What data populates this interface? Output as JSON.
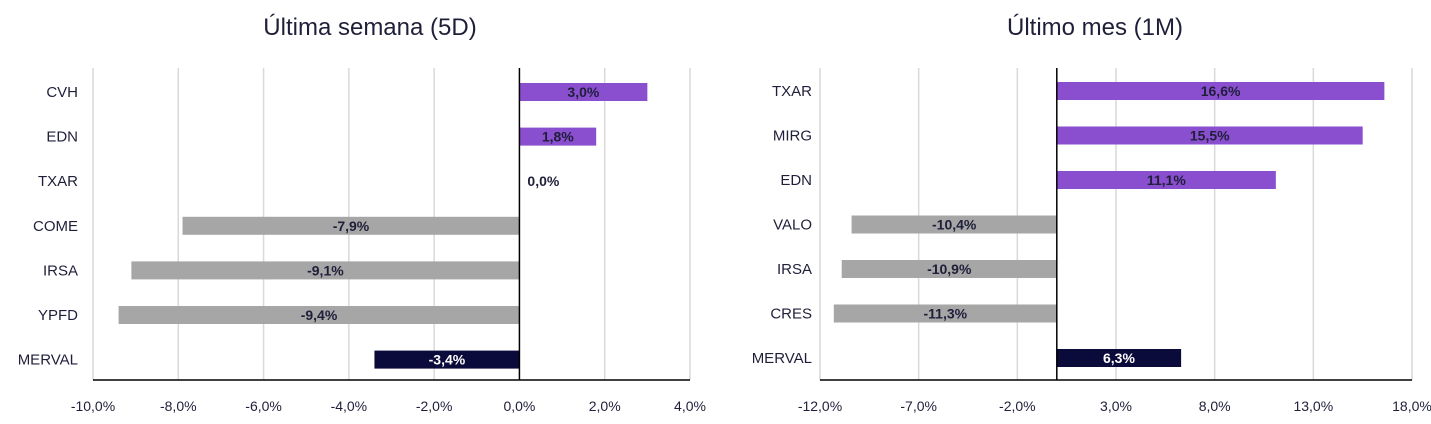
{
  "chart_data": [
    {
      "type": "bar",
      "orientation": "horizontal",
      "title": "Última semana (5D)",
      "categories": [
        "CVH",
        "EDN",
        "TXAR",
        "COME",
        "IRSA",
        "YPFD",
        "MERVAL"
      ],
      "values": [
        3.0,
        1.8,
        0.0,
        -7.9,
        -9.1,
        -9.4,
        -3.4
      ],
      "value_labels": [
        "3,0%",
        "1,8%",
        "0,0%",
        "-7,9%",
        "-9,1%",
        "-9,4%",
        "-3,4%"
      ],
      "bar_colors": [
        "#8a4fcf",
        "#8a4fcf",
        "#8a4fcf",
        "#a6a6a6",
        "#a6a6a6",
        "#a6a6a6",
        "#0b0b3b"
      ],
      "xticks": [
        -10,
        -8,
        -6,
        -4,
        -2,
        0,
        2,
        4
      ],
      "xtick_labels": [
        "-10,0%",
        "-8,0%",
        "-6,0%",
        "-4,0%",
        "-2,0%",
        "0,0%",
        "2,0%",
        "4,0%"
      ],
      "xlim": [
        -10,
        4
      ],
      "grid": "vertical"
    },
    {
      "type": "bar",
      "orientation": "horizontal",
      "title": "Último mes (1M)",
      "categories": [
        "TXAR",
        "MIRG",
        "EDN",
        "VALO",
        "IRSA",
        "CRES",
        "MERVAL"
      ],
      "values": [
        16.6,
        15.5,
        11.1,
        -10.4,
        -10.9,
        -11.3,
        6.3
      ],
      "value_labels": [
        "16,6%",
        "15,5%",
        "11,1%",
        "-10,4%",
        "-10,9%",
        "-11,3%",
        "6,3%"
      ],
      "bar_colors": [
        "#8a4fcf",
        "#8a4fcf",
        "#8a4fcf",
        "#a6a6a6",
        "#a6a6a6",
        "#a6a6a6",
        "#0b0b3b"
      ],
      "xticks": [
        -12,
        -7,
        -2,
        3,
        8,
        13,
        18
      ],
      "xtick_labels": [
        "-12,0%",
        "-7,0%",
        "-2,0%",
        "3,0%",
        "8,0%",
        "13,0%",
        "18,0%"
      ],
      "xlim": [
        -12,
        18
      ],
      "grid": "vertical"
    }
  ],
  "colors": {
    "positive": "#8a4fcf",
    "negative": "#a6a6a6",
    "index": "#0b0b3b",
    "label_dark": "#1f1f3a",
    "label_light": "#ffffff",
    "grid": "#d9d9d9",
    "axis": "#000000"
  }
}
